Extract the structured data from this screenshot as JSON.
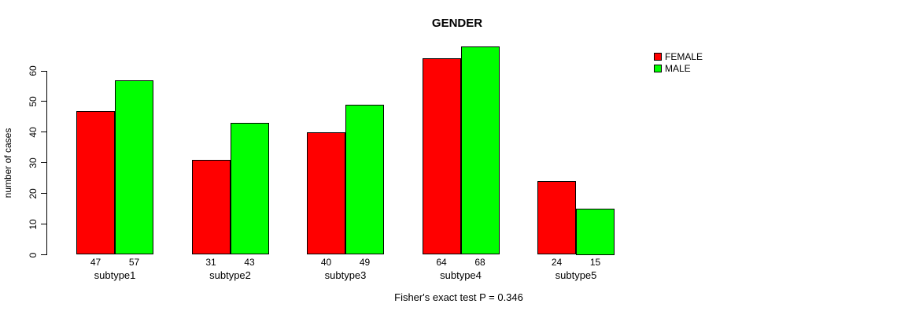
{
  "chart_data": {
    "type": "bar",
    "title": "GENDER",
    "xlabel": "",
    "ylabel": "number of cases",
    "categories": [
      "subtype1",
      "subtype2",
      "subtype3",
      "subtype4",
      "subtype5"
    ],
    "series": [
      {
        "name": "FEMALE",
        "color": "#ff0000",
        "values": [
          47,
          31,
          40,
          64,
          24
        ]
      },
      {
        "name": "MALE",
        "color": "#00ff00",
        "values": [
          57,
          43,
          49,
          68,
          15
        ]
      }
    ],
    "bar_border_color": "#000000",
    "bar_value_labels": true,
    "ylim": [
      0,
      60
    ],
    "yticks": [
      0,
      10,
      20,
      30,
      40,
      50,
      60
    ],
    "grid": false,
    "legend_position": "top-right",
    "legend": [
      {
        "label": "FEMALE",
        "color": "#ff0000"
      },
      {
        "label": "MALE",
        "color": "#00ff00"
      }
    ],
    "annotation": "Fisher's exact test P = 0.346"
  }
}
